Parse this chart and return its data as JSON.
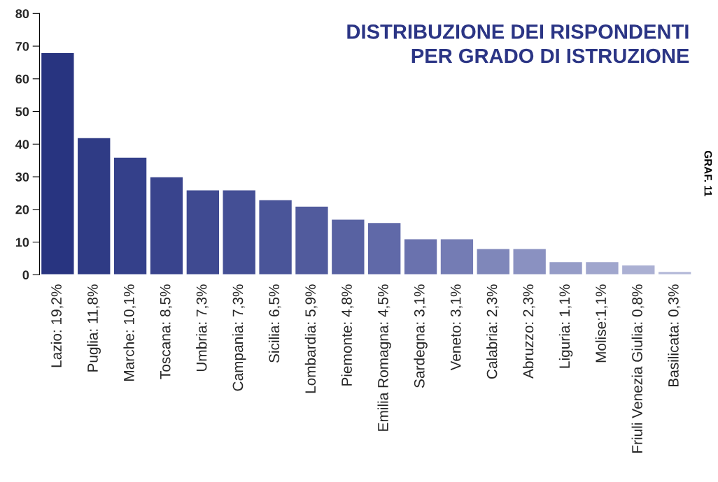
{
  "chart_data": {
    "type": "bar",
    "title": "DISTRIBUZIONE DEI RISPONDENTI\nPER GRADO DI ISTRUZIONE",
    "categories": [
      "Lazio: 19,2%",
      "Puglia: 11,8%",
      "Marche: 10,1%",
      "Toscana: 8,5%",
      "Umbria: 7,3%",
      "Campania: 7,3%",
      "Sicilia: 6,5%",
      "Lombardia: 5,9%",
      "Piemonte: 4,8%",
      "Emilia Romagna: 4,5%",
      "Sardegna: 3,1%",
      "Veneto: 3,1%",
      "Calabria: 2,3%",
      "Abruzzo: 2,3%",
      "Liguria: 1,1%",
      "Molise:1,1%",
      "Friuli Venezia Giulia: 0,8%",
      "Basilicata: 0,3%"
    ],
    "values": [
      68,
      42,
      36,
      30,
      26,
      26,
      23,
      21,
      17,
      16,
      11,
      11,
      8,
      8,
      4,
      4,
      3,
      1
    ],
    "colors": [
      "#283480",
      "#2f3b85",
      "#34408a",
      "#39448d",
      "#3f4a91",
      "#444f95",
      "#4a5599",
      "#515b9d",
      "#5862a2",
      "#6069a8",
      "#6a72ae",
      "#747cb4",
      "#7f87ba",
      "#8a91c1",
      "#959cc7",
      "#a0a6cd",
      "#abb0d3",
      "#b5bad9"
    ],
    "ylim": [
      0,
      80
    ],
    "yticks": [
      0,
      10,
      20,
      30,
      40,
      50,
      60,
      70,
      80
    ],
    "grid": false,
    "annotations": [
      "GRAF. 11"
    ]
  }
}
